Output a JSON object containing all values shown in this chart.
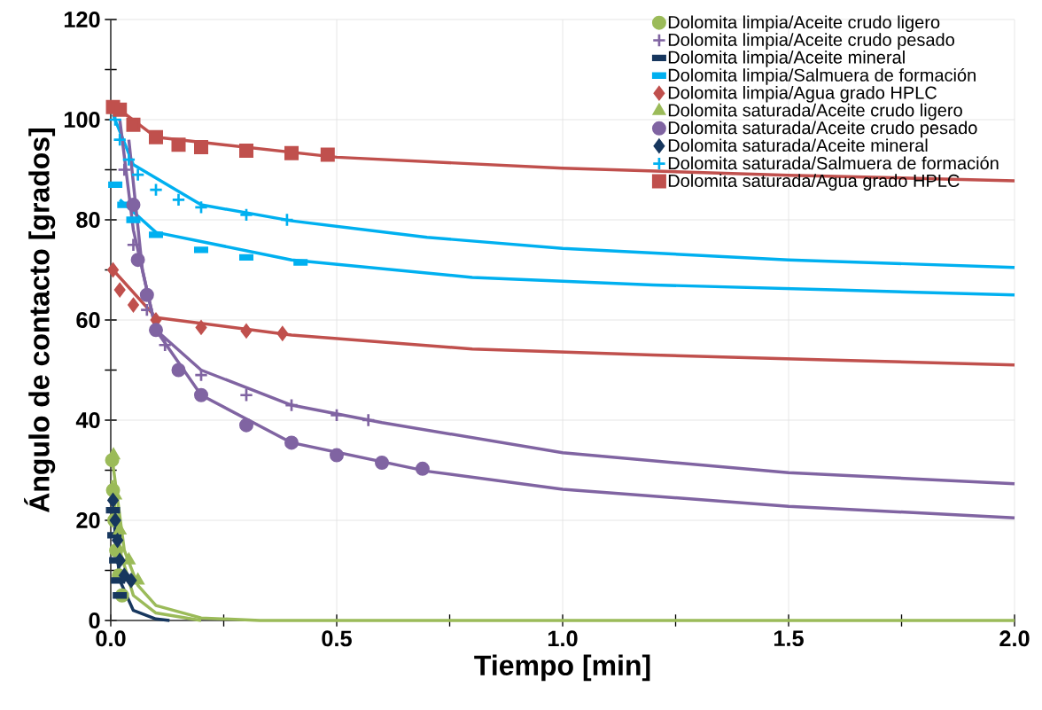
{
  "chart_data": {
    "type": "scatter",
    "xlabel": "Tiempo [min]",
    "ylabel": "Ángulo de contacto [grados]",
    "xlim": [
      0,
      2
    ],
    "ylim": [
      0,
      120
    ],
    "xticks": [
      {
        "value": 0,
        "label": "0.0"
      },
      {
        "value": 0.5,
        "label": "0.5"
      },
      {
        "value": 1,
        "label": "1.0"
      },
      {
        "value": 1.5,
        "label": "1.5"
      },
      {
        "value": 2,
        "label": "2.0"
      }
    ],
    "yticks": [
      0,
      20,
      40,
      60,
      80,
      100,
      120
    ],
    "grid": true,
    "legend": "top right",
    "series": [
      {
        "type": "line",
        "marker": "none",
        "color": "#c0504d",
        "x": [
          0.005,
          0.1,
          0.5,
          1.0,
          1.5,
          2.0
        ],
        "values": [
          103,
          96.5,
          92.5,
          90.3,
          88.9,
          87.8
        ]
      },
      {
        "type": "line",
        "marker": "none",
        "color": "#00b0f0",
        "x": [
          0.005,
          0.05,
          0.2,
          0.4,
          0.7,
          1.0,
          1.5,
          2.0
        ],
        "values": [
          101,
          91,
          83,
          79.8,
          76.5,
          74.3,
          72,
          70.5
        ]
      },
      {
        "type": "line",
        "marker": "none",
        "color": "#00b0f0",
        "x": [
          0.02,
          0.1,
          0.4,
          0.8,
          1.2,
          1.6,
          2.0
        ],
        "values": [
          84,
          77.5,
          72,
          68.5,
          67,
          66,
          65
        ]
      },
      {
        "type": "line",
        "marker": "none",
        "color": "#c0504d",
        "x": [
          0.005,
          0.1,
          0.4,
          0.8,
          1.2,
          1.6,
          2.0
        ],
        "values": [
          70,
          60.5,
          57,
          54.2,
          53,
          52,
          51
        ]
      },
      {
        "type": "line",
        "marker": "none",
        "color": "#8064a2",
        "x": [
          0.02,
          0.05,
          0.1,
          0.2,
          0.4,
          0.6,
          1.0,
          1.5,
          2.0
        ],
        "values": [
          100,
          78,
          58,
          50,
          43,
          39.5,
          33.5,
          29.5,
          27.3
        ]
      },
      {
        "type": "line",
        "marker": "none",
        "color": "#8064a2",
        "x": [
          0.04,
          0.07,
          0.1,
          0.2,
          0.4,
          0.7,
          1.0,
          1.5,
          2.0
        ],
        "values": [
          96,
          70,
          58,
          45,
          35.5,
          29.8,
          26.2,
          22.8,
          20.5
        ]
      },
      {
        "type": "line",
        "marker": "none",
        "color": "#9bbb59",
        "x": [
          0.005,
          0.03,
          0.06,
          0.1,
          0.2,
          0.33,
          2.0
        ],
        "values": [
          31,
          14,
          7,
          3,
          0.5,
          0,
          0
        ]
      },
      {
        "type": "line",
        "marker": "none",
        "color": "#9bbb59",
        "x": [
          0.003,
          0.02,
          0.05,
          0.1,
          0.2
        ],
        "values": [
          28,
          14,
          5,
          1.5,
          0
        ]
      },
      {
        "type": "line",
        "marker": "none",
        "color": "#17375e",
        "x": [
          0.005,
          0.02,
          0.05,
          0.1,
          0.13
        ],
        "values": [
          22,
          8,
          2,
          0.3,
          0
        ]
      },
      {
        "name": "Dolomita limpia/Aceite crudo ligero",
        "marker": "circle",
        "color": "#9bbb59",
        "x": [
          0.003,
          0.005,
          0.008,
          0.012,
          0.018,
          0.025
        ],
        "values": [
          32,
          26,
          20,
          14,
          9,
          5
        ]
      },
      {
        "name": "Dolomita limpia/Aceite crudo pesado",
        "marker": "cross",
        "color": "#8064a2",
        "x": [
          0.03,
          0.05,
          0.08,
          0.12,
          0.2,
          0.3,
          0.4,
          0.5,
          0.57
        ],
        "values": [
          90,
          75,
          62,
          55,
          49,
          45,
          43,
          41,
          40
        ]
      },
      {
        "name": "Dolomita limpia/Aceite mineral",
        "marker": "square",
        "color": "#17375e",
        "x": [
          0.005,
          0.008,
          0.012,
          0.016,
          0.02
        ],
        "values": [
          22,
          17,
          12,
          8,
          5
        ]
      },
      {
        "name": "Dolomita limpia/Salmuera de formación",
        "marker": "square",
        "color": "#00b0f0",
        "x": [
          0.01,
          0.03,
          0.05,
          0.1,
          0.2,
          0.3,
          0.42
        ],
        "values": [
          87,
          83,
          80,
          77,
          74,
          72.5,
          71.5
        ]
      },
      {
        "name": "Dolomita limpia/Agua grado HPLC",
        "marker": "diamond",
        "color": "#c0504d",
        "x": [
          0.005,
          0.02,
          0.05,
          0.1,
          0.2,
          0.3,
          0.38
        ],
        "values": [
          70,
          66,
          63,
          60,
          58.5,
          57.8,
          57.3
        ]
      },
      {
        "name": "Dolomita saturada/Aceite crudo ligero",
        "marker": "triangle",
        "color": "#9bbb59",
        "x": [
          0.006,
          0.01,
          0.02,
          0.04,
          0.06
        ],
        "values": [
          33,
          25,
          18,
          12,
          8
        ]
      },
      {
        "name": "Dolomita saturada/Aceite crudo pesado",
        "marker": "circle",
        "color": "#8064a2",
        "x": [
          0.05,
          0.06,
          0.08,
          0.1,
          0.15,
          0.2,
          0.3,
          0.4,
          0.5,
          0.6,
          0.69
        ],
        "values": [
          83,
          72,
          65,
          58,
          50,
          45,
          39,
          35.5,
          33,
          31.5,
          30.3
        ]
      },
      {
        "name": "Dolomita saturada/Aceite mineral",
        "marker": "diamond",
        "color": "#17375e",
        "x": [
          0.005,
          0.01,
          0.015,
          0.02,
          0.03,
          0.045
        ],
        "values": [
          24,
          20,
          16,
          12,
          9,
          8
        ]
      },
      {
        "name": "Dolomita saturada/Salmuera de formación",
        "marker": "cross",
        "color": "#00b0f0",
        "x": [
          0.01,
          0.02,
          0.04,
          0.06,
          0.1,
          0.15,
          0.2,
          0.3,
          0.39
        ],
        "values": [
          100,
          96,
          92,
          89,
          86,
          84,
          82.5,
          81,
          80
        ]
      },
      {
        "name": "Dolomita saturada/Agua grado HPLC",
        "marker": "square",
        "color": "#c0504d",
        "x": [
          0.005,
          0.02,
          0.05,
          0.1,
          0.15,
          0.2,
          0.3,
          0.4,
          0.48
        ],
        "values": [
          102.5,
          102,
          99,
          96.5,
          95,
          94.5,
          93.8,
          93.3,
          93
        ]
      }
    ]
  }
}
